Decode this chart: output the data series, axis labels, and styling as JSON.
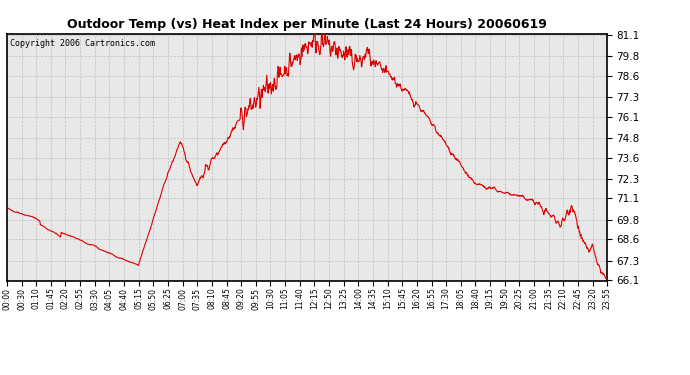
{
  "title": "Outdoor Temp (vs) Heat Index per Minute (Last 24 Hours) 20060619",
  "copyright": "Copyright 2006 Cartronics.com",
  "line_color": "#dd0000",
  "background_color": "#ffffff",
  "plot_bg_color": "#e8e8e8",
  "grid_color": "#bbbbbb",
  "yticks": [
    66.1,
    67.3,
    68.6,
    69.8,
    71.1,
    72.3,
    73.6,
    74.8,
    76.1,
    77.3,
    78.6,
    79.8,
    81.1
  ],
  "ymin": 66.1,
  "ymax": 81.1,
  "xtick_labels": [
    "00:00",
    "00:30",
    "01:10",
    "01:45",
    "02:20",
    "02:55",
    "03:30",
    "04:05",
    "04:40",
    "05:15",
    "05:50",
    "06:25",
    "07:00",
    "07:35",
    "08:10",
    "08:45",
    "09:20",
    "09:55",
    "10:30",
    "11:05",
    "11:40",
    "12:15",
    "12:50",
    "13:25",
    "14:00",
    "14:35",
    "15:10",
    "15:45",
    "16:20",
    "16:55",
    "17:30",
    "18:05",
    "18:40",
    "19:15",
    "19:50",
    "20:25",
    "21:00",
    "21:35",
    "22:10",
    "22:45",
    "23:20",
    "23:55"
  ],
  "n_points": 1440
}
